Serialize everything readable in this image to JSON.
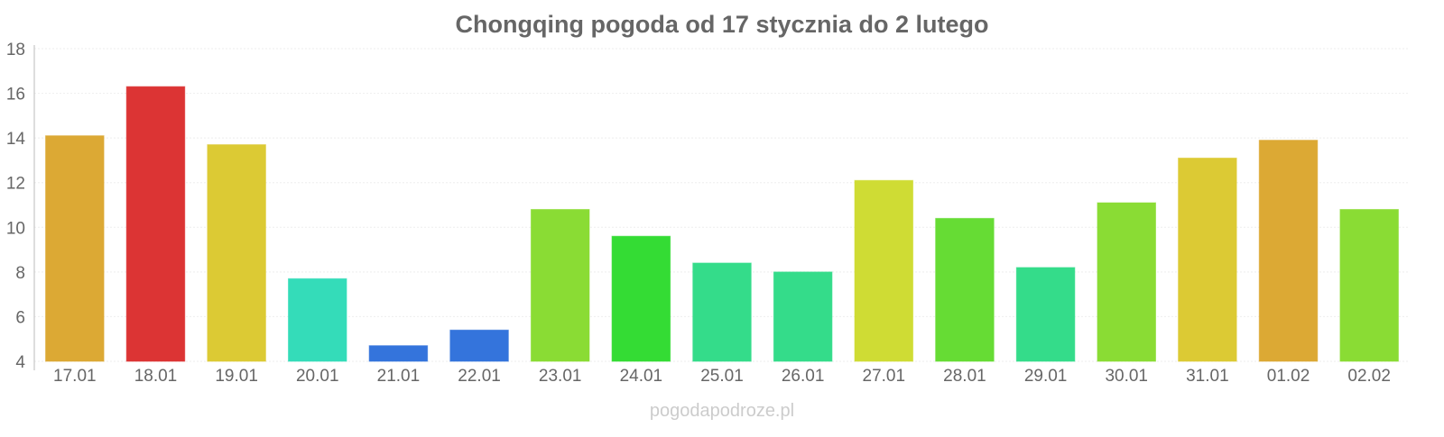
{
  "chart_data": {
    "type": "bar",
    "title": "Chongqing pogoda od 17 stycznia do 2 lutego",
    "xlabel": "",
    "ylabel": "",
    "ylim": [
      4,
      18
    ],
    "yticks": [
      4,
      6,
      8,
      10,
      12,
      14,
      16,
      18
    ],
    "grid": true,
    "categories": [
      "17.01",
      "18.01",
      "19.01",
      "20.01",
      "21.01",
      "22.01",
      "23.01",
      "24.01",
      "25.01",
      "26.01",
      "27.01",
      "28.01",
      "29.01",
      "30.01",
      "31.01",
      "01.02",
      "02.02"
    ],
    "values": [
      14.1,
      16.3,
      13.7,
      7.7,
      4.7,
      5.4,
      10.8,
      9.6,
      8.4,
      8.0,
      12.1,
      10.4,
      8.2,
      11.1,
      13.1,
      13.9,
      10.8
    ],
    "colors": [
      "#dca934",
      "#dc3434",
      "#dcca34",
      "#34dcb9",
      "#3474dc",
      "#3474dc",
      "#8adc34",
      "#34dc34",
      "#34dc8a",
      "#34dc8a",
      "#cfdc34",
      "#66dc34",
      "#34dc8a",
      "#8adc34",
      "#dcca34",
      "#dca934",
      "#8adc34"
    ]
  },
  "watermark": "pogodapodroze.pl"
}
